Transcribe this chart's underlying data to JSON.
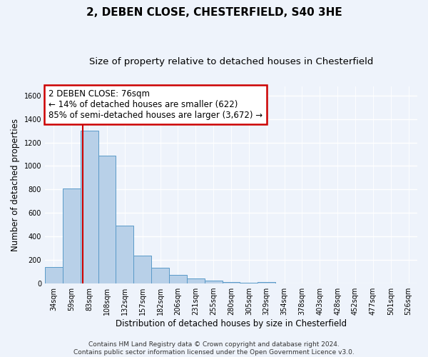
{
  "title1": "2, DEBEN CLOSE, CHESTERFIELD, S40 3HE",
  "title2": "Size of property relative to detached houses in Chesterfield",
  "xlabel": "Distribution of detached houses by size in Chesterfield",
  "ylabel": "Number of detached properties",
  "categories": [
    "34sqm",
    "59sqm",
    "83sqm",
    "108sqm",
    "132sqm",
    "157sqm",
    "182sqm",
    "206sqm",
    "231sqm",
    "255sqm",
    "280sqm",
    "305sqm",
    "329sqm",
    "354sqm",
    "378sqm",
    "403sqm",
    "428sqm",
    "452sqm",
    "477sqm",
    "501sqm",
    "526sqm"
  ],
  "values": [
    140,
    810,
    1300,
    1090,
    490,
    235,
    135,
    75,
    42,
    22,
    12,
    5,
    12,
    3,
    2,
    2,
    2,
    1,
    1,
    1,
    1
  ],
  "bar_color": "#b8d0e8",
  "bar_edge_color": "#5a9ac8",
  "red_line_x": 1.62,
  "annotation_text_line1": "2 DEBEN CLOSE: 76sqm",
  "annotation_text_line2": "← 14% of detached houses are smaller (622)",
  "annotation_text_line3": "85% of semi-detached houses are larger (3,672) →",
  "annotation_box_color": "#ffffff",
  "annotation_box_edge_color": "#cc0000",
  "ylim": [
    0,
    1680
  ],
  "yticks": [
    0,
    200,
    400,
    600,
    800,
    1000,
    1200,
    1400,
    1600
  ],
  "footer_text": "Contains HM Land Registry data © Crown copyright and database right 2024.\nContains public sector information licensed under the Open Government Licence v3.0.",
  "background_color": "#eef3fb",
  "grid_color": "#d0ddf0",
  "title1_fontsize": 11,
  "title2_fontsize": 9.5,
  "xlabel_fontsize": 8.5,
  "ylabel_fontsize": 8.5,
  "tick_fontsize": 7,
  "footer_fontsize": 6.5,
  "ann_fontsize": 8.5
}
